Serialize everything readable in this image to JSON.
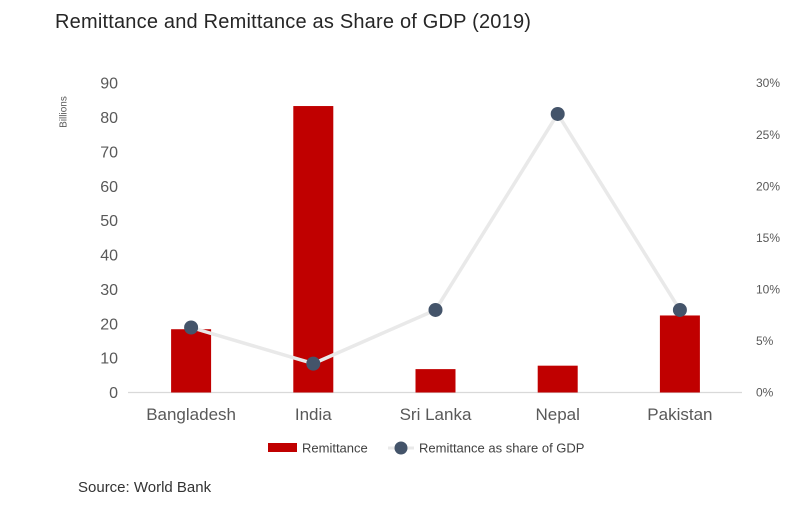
{
  "title": "Remittance and Remittance as Share of GDP (2019)",
  "source": "Source: World Bank",
  "colors": {
    "bar": "#c00000",
    "marker": "#44546a",
    "line": "#e9e9e9",
    "axis_line": "#d9d9d9",
    "tick_text": "#595959",
    "legend_text": "#404040",
    "title_text": "#262626"
  },
  "chart_data": {
    "type": "bar",
    "subtype": "combo-bar-line",
    "title": "Remittance and Remittance as Share of GDP (2019)",
    "categories": [
      "Bangladesh",
      "India",
      "Sri Lanka",
      "Nepal",
      "Pakistan"
    ],
    "series": [
      {
        "name": "Remittance",
        "type": "bar",
        "axis": "left",
        "values": [
          18.4,
          83.3,
          6.8,
          7.8,
          22.4
        ],
        "color": "#c00000"
      },
      {
        "name": "Remittance as share of GDP",
        "type": "line-marker",
        "axis": "right",
        "values": [
          6.3,
          2.8,
          8,
          27,
          8
        ],
        "line_color": "#e9e9e9",
        "marker_color": "#44546a"
      }
    ],
    "left_axis": {
      "title": "Billions",
      "min": 0,
      "max": 90,
      "step": 10,
      "ticks": [
        "0",
        "10",
        "20",
        "30",
        "40",
        "50",
        "60",
        "70",
        "80",
        "90"
      ]
    },
    "right_axis": {
      "min": 0,
      "max": 30,
      "step": 5,
      "ticks": [
        "0%",
        "5%",
        "10%",
        "15%",
        "20%",
        "25%",
        "30%"
      ]
    },
    "grid": false,
    "legend_position": "bottom",
    "legend": [
      "Remittance",
      "Remittance as share of GDP"
    ]
  }
}
